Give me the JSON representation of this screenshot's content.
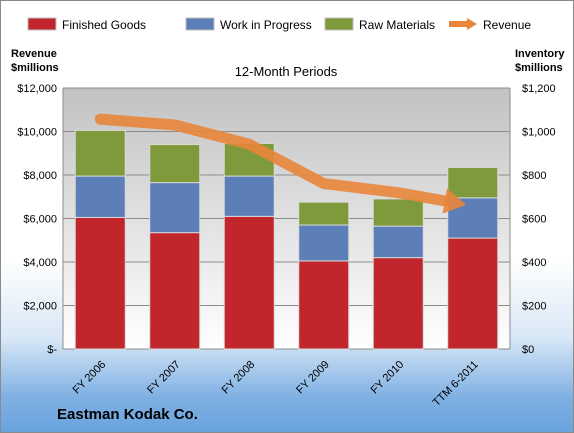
{
  "chart_data": {
    "type": "bar",
    "title": "12-Month Periods",
    "categories": [
      "FY 2006",
      "FY 2007",
      "FY 2008",
      "FY 2009",
      "FY 2010",
      "TTM 6-2011"
    ],
    "series": [
      {
        "name": "Finished Goods",
        "axis": "right",
        "stacked": true,
        "color": "#c0262c",
        "values": [
          605,
          535,
          610,
          405,
          420,
          510
        ]
      },
      {
        "name": "Work in Progress",
        "axis": "right",
        "stacked": true,
        "color": "#5b7fb6",
        "values": [
          190,
          230,
          185,
          165,
          145,
          185
        ]
      },
      {
        "name": "Raw Materials",
        "axis": "right",
        "stacked": true,
        "color": "#7f9a3a",
        "values": [
          210,
          175,
          150,
          105,
          125,
          140
        ]
      },
      {
        "name": "Revenue",
        "axis": "left",
        "type": "line",
        "color": "#e8853a",
        "values": [
          10568,
          10301,
          9416,
          7606,
          7187,
          6583
        ]
      }
    ],
    "y_left": {
      "label_lines": [
        "Revenue",
        "$millions"
      ],
      "ylim": [
        0,
        12000
      ],
      "ticks": [
        "$-",
        "$2,000",
        "$4,000",
        "$6,000",
        "$8,000",
        "$10,000",
        "$12,000"
      ]
    },
    "y_right": {
      "label_lines": [
        "Inventory",
        "$millions"
      ],
      "ylim": [
        0,
        1200
      ],
      "ticks": [
        "$0",
        "$200",
        "$400",
        "$600",
        "$800",
        "$1,000",
        "$1,200"
      ]
    },
    "grid": true,
    "legend": "top"
  },
  "footer": {
    "company": "Eastman Kodak Co."
  }
}
